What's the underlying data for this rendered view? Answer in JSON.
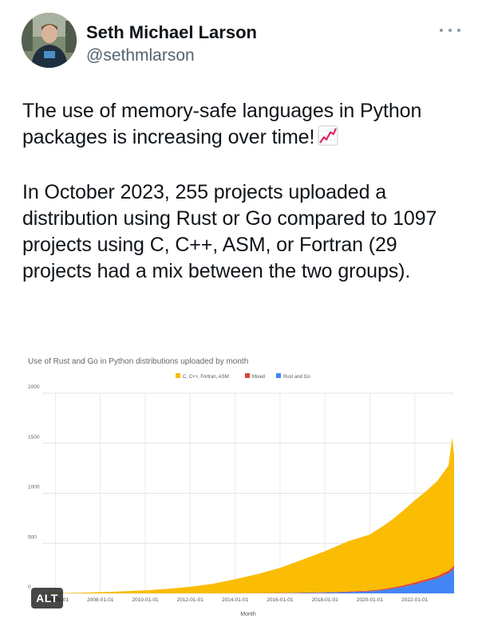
{
  "tweet": {
    "display_name": "Seth Michael Larson",
    "handle": "@sethmlarson",
    "paragraph_1": "The use of memory-safe languages in Python packages is increasing over time!",
    "emoji_icon": "chart-increasing-icon",
    "paragraph_2": "In October 2023, 255 projects uploaded a distribution using Rust or Go compared to 1097 projects using C, C++, ASM, or Fortran (29 projects had a mix between the two groups).",
    "alt_badge": "ALT"
  },
  "chart_data": {
    "type": "area",
    "stacked": true,
    "title": "Use of Rust and Go in Python distributions uploaded by month",
    "xlabel": "Month",
    "ylabel": "",
    "ylim": [
      0,
      2000
    ],
    "yticks": [
      "0",
      "500",
      "1000",
      "1500",
      "2000"
    ],
    "xticks": [
      "2006-01-01",
      "2008-01-01",
      "2010-01-01",
      "2012-01-01",
      "2014-01-01",
      "2016-01-01",
      "2018-01-01",
      "2020-01-01",
      "2022-01-01"
    ],
    "xlim": [
      "2005-06",
      "2023-10"
    ],
    "legend_position": "top-center",
    "grid": true,
    "x": [
      "2005-06",
      "2006-01",
      "2007-01",
      "2008-01",
      "2009-01",
      "2010-01",
      "2011-01",
      "2012-01",
      "2013-01",
      "2014-01",
      "2015-01",
      "2016-01",
      "2017-01",
      "2018-01",
      "2019-01",
      "2020-01",
      "2020-07",
      "2021-01",
      "2021-07",
      "2022-01",
      "2022-07",
      "2023-01",
      "2023-04",
      "2023-07",
      "2023-09",
      "2023-10"
    ],
    "series": [
      {
        "name": "Rust and Go",
        "color": "#4285f4",
        "values": [
          0,
          0,
          0,
          0,
          0,
          0,
          0,
          0,
          0,
          0,
          1,
          2,
          4,
          7,
          12,
          20,
          30,
          45,
          65,
          90,
          120,
          150,
          175,
          200,
          230,
          255
        ]
      },
      {
        "name": "Mixed",
        "color": "#db4437",
        "values": [
          0,
          0,
          0,
          0,
          0,
          0,
          0,
          0,
          0,
          1,
          1,
          2,
          3,
          4,
          6,
          8,
          10,
          12,
          15,
          18,
          20,
          22,
          24,
          26,
          28,
          29
        ]
      },
      {
        "name": "C, C++, Fortran, ASM",
        "color": "#fbbc04",
        "values": [
          0,
          3,
          6,
          12,
          20,
          30,
          45,
          65,
          95,
          140,
          190,
          250,
          330,
          410,
          500,
          560,
          620,
          680,
          750,
          820,
          880,
          950,
          1000,
          1050,
          1300,
          1097
        ]
      }
    ]
  }
}
